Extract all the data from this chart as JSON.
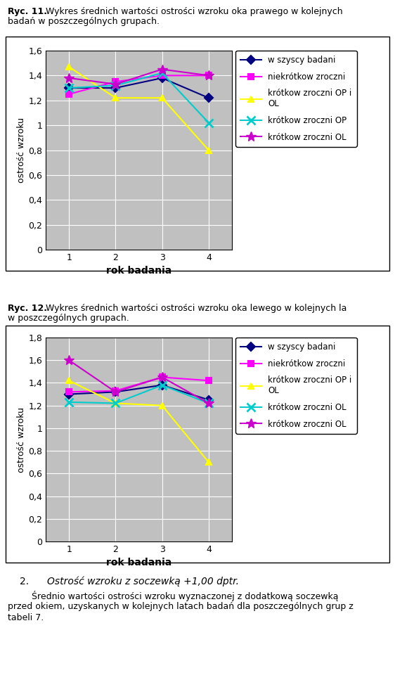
{
  "chart1": {
    "title_line1_bold": "Ryc. 11.",
    "title_line1_normal": " Wykres średnich wartości ostrości wzroku oka prawego w kolejnych",
    "title_line2": "badań w poszczególnych grupach.",
    "xlabel": "rok badania",
    "ylabel": "ostrość wzroku",
    "ylim": [
      0,
      1.6
    ],
    "yticks": [
      0,
      0.2,
      0.4,
      0.6,
      0.8,
      1.0,
      1.2,
      1.4,
      1.6
    ],
    "ytick_labels": [
      "0",
      "0,2",
      "0,4",
      "0,6",
      "0,8",
      "1",
      "1,2",
      "1,4",
      "1,6"
    ],
    "xlim": [
      0.5,
      4.5
    ],
    "xticks": [
      1,
      2,
      3,
      4
    ],
    "series": [
      {
        "label": "w szyscy badani",
        "color": "#000080",
        "marker": "D",
        "values": [
          1.3,
          1.3,
          1.38,
          1.22
        ]
      },
      {
        "label": "niekrótkow zroczni",
        "color": "#FF00FF",
        "marker": "s",
        "values": [
          1.25,
          1.35,
          1.4,
          1.4
        ]
      },
      {
        "label": "krótkow zroczni OP i\nOL",
        "color": "#FFFF00",
        "marker": "^",
        "values": [
          1.47,
          1.22,
          1.22,
          0.8
        ]
      },
      {
        "label": "krótkow zroczni OP",
        "color": "#00CCCC",
        "marker": "x",
        "values": [
          1.3,
          1.32,
          1.42,
          1.02
        ]
      },
      {
        "label": "krótkow zroczni OL",
        "color": "#CC00CC",
        "marker": "*",
        "values": [
          1.38,
          1.33,
          1.45,
          1.4
        ]
      }
    ],
    "plot_bg": "#C0C0C0",
    "fig_bg": "#FFFFFF"
  },
  "chart2": {
    "title_line1_bold": "Ryc. 12.",
    "title_line1_normal": " Wykres średnich wartości ostrości wzroku oka lewego w kolejnych la",
    "title_line2": "w poszczególnych grupach.",
    "xlabel": "rok badania",
    "ylabel": "ostrość wzroku",
    "ylim": [
      0,
      1.8
    ],
    "yticks": [
      0,
      0.2,
      0.4,
      0.6,
      0.8,
      1.0,
      1.2,
      1.4,
      1.6,
      1.8
    ],
    "ytick_labels": [
      "0",
      "0,2",
      "0,4",
      "0,6",
      "0,8",
      "1",
      "1,2",
      "1,4",
      "1,6",
      "1,8"
    ],
    "xlim": [
      0.5,
      4.5
    ],
    "xticks": [
      1,
      2,
      3,
      4
    ],
    "series": [
      {
        "label": "w szyscy badani",
        "color": "#000080",
        "marker": "D",
        "values": [
          1.3,
          1.32,
          1.38,
          1.25
        ]
      },
      {
        "label": "niekrótkow zroczni",
        "color": "#FF00FF",
        "marker": "s",
        "values": [
          1.32,
          1.33,
          1.45,
          1.42
        ]
      },
      {
        "label": "krótkow zroczni OP i\nOL",
        "color": "#FFFF00",
        "marker": "^",
        "values": [
          1.42,
          1.22,
          1.2,
          0.7
        ]
      },
      {
        "label": "krótkow zroczni OL",
        "color": "#00CCCC",
        "marker": "x",
        "values": [
          1.23,
          1.22,
          1.38,
          1.22
        ]
      },
      {
        "label": "krótkow zroczni OL",
        "color": "#CC00CC",
        "marker": "*",
        "values": [
          1.6,
          1.32,
          1.45,
          1.22
        ]
      }
    ],
    "plot_bg": "#C0C0C0",
    "fig_bg": "#FFFFFF"
  },
  "footer_number": "2.",
  "footer_italic": "Ostrość wzroku z soczewką +1,00 dptr.",
  "footer_para1": "Średnio wartości ostrości wzroku wyznaczonej z dodatkową soczewką",
  "footer_para2": "przed okiem, uzyskanych w kolejnych latach badań dla poszczególnych grup z",
  "footer_para3": "tabeli 7."
}
